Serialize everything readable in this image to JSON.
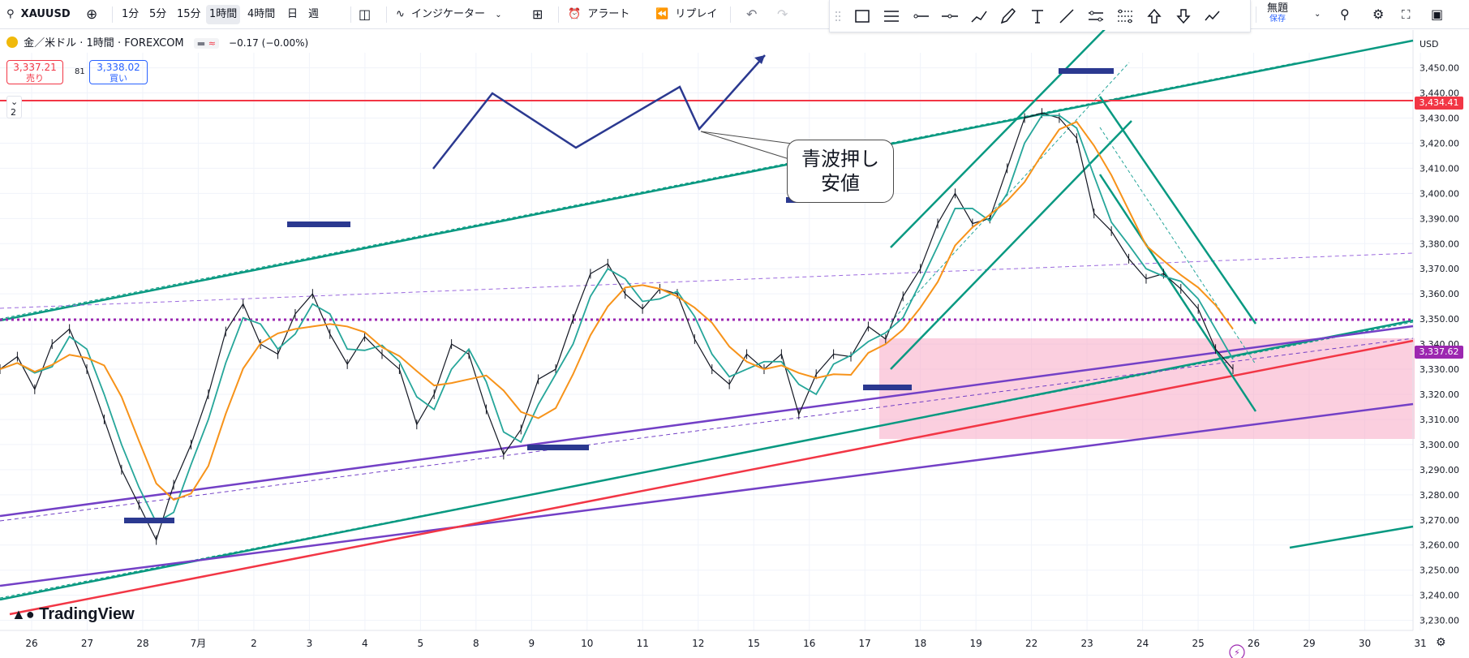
{
  "toolbar": {
    "symbol": "XAUUSD",
    "timeframes": [
      "1分",
      "5分",
      "15分",
      "1時間",
      "4時間",
      "日",
      "週"
    ],
    "active_timeframe": "1時間",
    "indicators_label": "インジケーター",
    "alert_label": "アラート",
    "replay_label": "リプレイ",
    "layout_name": "無題",
    "layout_status": "保存"
  },
  "legend": {
    "title": "金／米ドル · 1時間 · FOREXCOM",
    "change": "−0.17 (−0.00%)",
    "sell_price": "3,337.21",
    "sell_label": "売り",
    "spread": "81",
    "buy_price": "3,338.02",
    "buy_label": "買い",
    "collapsed_count": "2"
  },
  "annotation_text_line1": "青波押し",
  "annotation_text_line2": "安値",
  "logo_text": "TradingView",
  "chart_data": {
    "type": "line",
    "currency": "USD",
    "x_labels": [
      "26",
      "27",
      "28",
      "7月",
      "2",
      "3",
      "4",
      "5",
      "8",
      "9",
      "10",
      "11",
      "12",
      "15",
      "16",
      "17",
      "18",
      "19",
      "22",
      "23",
      "24",
      "25",
      "26",
      "29",
      "30",
      "31"
    ],
    "y_ticks": [
      3230,
      3240,
      3250,
      3260,
      3270,
      3280,
      3290,
      3300,
      3310,
      3320,
      3330,
      3340,
      3350,
      3360,
      3370,
      3380,
      3390,
      3400,
      3410,
      3420,
      3430,
      3440,
      3450
    ],
    "ylim": [
      3226,
      3456
    ],
    "series": [
      {
        "values": [
          3330,
          3335,
          3322,
          3340,
          3346,
          3330,
          3310,
          3290,
          3276,
          3262,
          3284,
          3300,
          3320,
          3345,
          3356,
          3340,
          3336,
          3352,
          3360,
          3344,
          3332,
          3343,
          3336,
          3330,
          3308,
          3320,
          3340,
          3336,
          3314,
          3296,
          3306,
          3326,
          3330,
          3350,
          3368,
          3372,
          3360,
          3354,
          3362,
          3360,
          3342,
          3330,
          3324,
          3336,
          3330,
          3336,
          3312,
          3328,
          3336,
          3335,
          3347,
          3342,
          3359,
          3370,
          3388,
          3400,
          3388,
          3390,
          3410,
          3430,
          3432,
          3430,
          3422,
          3392,
          3385,
          3374,
          3366,
          3368,
          3362,
          3354,
          3338,
          3330
        ]
      }
    ],
    "current_price": 3337.62,
    "price_tags": [
      "3,434.41",
      "3,337.62"
    ],
    "horizontal_line": 3434.41
  }
}
